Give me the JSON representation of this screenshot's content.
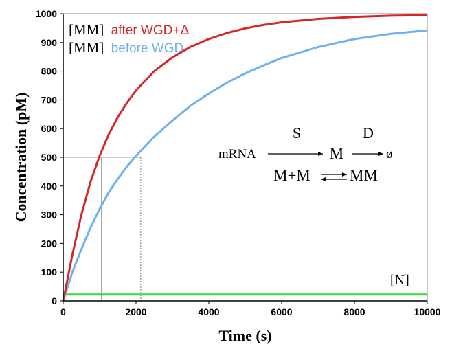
{
  "chart_data": {
    "type": "line",
    "xlabel": "Time (s)",
    "ylabel": "Concentration (pM)",
    "xlim": [
      0,
      10000
    ],
    "ylim": [
      0,
      1000
    ],
    "xticks": [
      0,
      2000,
      4000,
      6000,
      8000,
      10000
    ],
    "yticks": [
      0,
      100,
      200,
      300,
      400,
      500,
      600,
      700,
      800,
      900,
      1000
    ],
    "grid": false,
    "series": [
      {
        "prefix": "[MM]",
        "name": "after WGD+Δ",
        "color": "#d62728",
        "x": [
          0,
          250,
          500,
          750,
          1000,
          1250,
          1500,
          1750,
          2000,
          2500,
          3000,
          3500,
          4000,
          4500,
          5000,
          5500,
          6000,
          7000,
          8000,
          9000,
          10000
        ],
        "y": [
          0,
          160,
          300,
          415,
          505,
          580,
          640,
          690,
          733,
          800,
          848,
          885,
          912,
          933,
          949,
          961,
          970,
          982,
          989,
          993,
          995
        ]
      },
      {
        "prefix": "[MM]",
        "name": "before WGD",
        "color": "#6fb1ec",
        "x": [
          0,
          250,
          500,
          750,
          1000,
          1250,
          1500,
          1750,
          2000,
          2500,
          3000,
          3500,
          4000,
          4500,
          5000,
          5500,
          6000,
          7000,
          8000,
          9000,
          10000
        ],
        "y": [
          0,
          100,
          180,
          255,
          320,
          378,
          425,
          468,
          505,
          572,
          628,
          680,
          722,
          760,
          792,
          820,
          846,
          884,
          912,
          930,
          942
        ]
      },
      {
        "name": "[N]",
        "color": "#33dd33",
        "x": [
          0,
          10000
        ],
        "y": [
          22,
          22
        ]
      }
    ],
    "reference_lines": {
      "level": 500,
      "x_after": 1050,
      "x_before": 2130
    },
    "annotations": {
      "scheme": {
        "mrna": "mRNA",
        "s": "S",
        "m": "M",
        "d": "D",
        "null": "ø",
        "mpm": "M+M",
        "mm": "MM"
      }
    }
  }
}
